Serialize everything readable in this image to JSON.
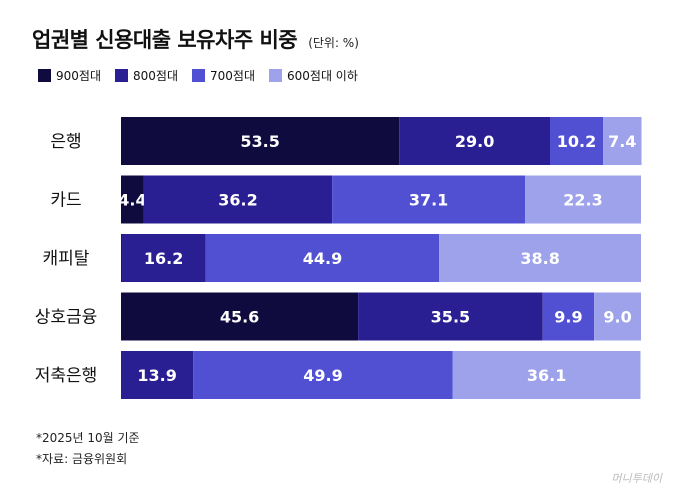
{
  "header": {
    "title": "업권별 신용대출 보유차주 비중",
    "unit": "(단위: %)"
  },
  "chart_data": {
    "type": "bar",
    "orientation": "horizontal",
    "stacked": true,
    "title": "업권별 신용대출 보유차주 비중",
    "xlabel": "",
    "ylabel": "",
    "xlim": [
      0,
      100
    ],
    "grid": false,
    "legend_position": "top-left",
    "categories": [
      "은행",
      "카드",
      "캐피탈",
      "상호금융",
      "저축은행"
    ],
    "series": [
      {
        "name": "900점대",
        "color": "#100b3f",
        "values": [
          53.5,
          4.4,
          0.1,
          45.6,
          0
        ]
      },
      {
        "name": "800점대",
        "color": "#2a1e93",
        "values": [
          29.0,
          36.2,
          16.2,
          35.5,
          13.9
        ]
      },
      {
        "name": "700점대",
        "color": "#5150d2",
        "values": [
          10.2,
          37.1,
          44.9,
          9.9,
          49.9
        ]
      },
      {
        "name": "600점대 이하",
        "color": "#9da2ea",
        "values": [
          7.4,
          22.3,
          38.8,
          9.0,
          36.1
        ]
      }
    ]
  },
  "notes": [
    "*2025년 10월 기준",
    "*자료: 금융위원회"
  ],
  "credit": "머니투데이"
}
